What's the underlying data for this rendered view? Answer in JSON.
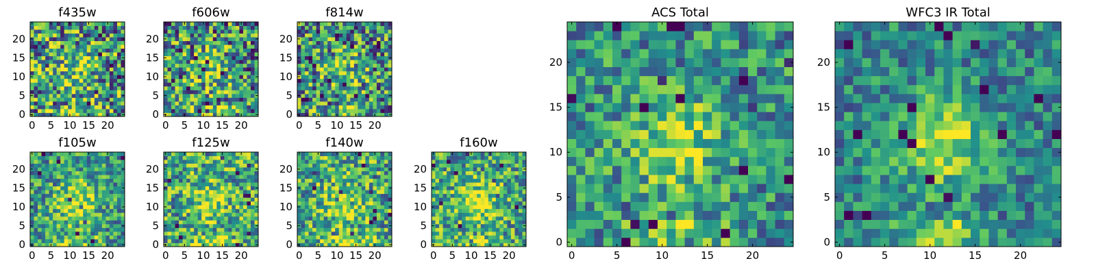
{
  "colormap": [
    "#440154",
    "#3b528b",
    "#21918c",
    "#5ec962",
    "#fde725"
  ],
  "chart_data": [
    {
      "id": "f435w",
      "type": "heatmap",
      "title": "f435w",
      "grid_size": 25,
      "xlim": [
        0,
        24
      ],
      "ylim": [
        0,
        24
      ],
      "xticks": [
        0,
        5,
        10,
        15,
        20
      ],
      "yticks": [
        0,
        5,
        10,
        15,
        20
      ],
      "seed": 435,
      "noise": 0.95,
      "blob": 0.25,
      "base": 0.55
    },
    {
      "id": "f606w",
      "type": "heatmap",
      "title": "f606w",
      "grid_size": 25,
      "xlim": [
        0,
        24
      ],
      "ylim": [
        0,
        24
      ],
      "xticks": [
        0,
        5,
        10,
        15,
        20
      ],
      "yticks": [
        0,
        5,
        10,
        15,
        20
      ],
      "seed": 606,
      "noise": 0.95,
      "blob": 0.25,
      "base": 0.5
    },
    {
      "id": "f814w",
      "type": "heatmap",
      "title": "f814w",
      "grid_size": 25,
      "xlim": [
        0,
        24
      ],
      "ylim": [
        0,
        24
      ],
      "xticks": [
        0,
        5,
        10,
        15,
        20
      ],
      "yticks": [
        0,
        5,
        10,
        15,
        20
      ],
      "seed": 814,
      "noise": 0.9,
      "blob": 0.3,
      "base": 0.5
    },
    {
      "id": "f105w",
      "type": "heatmap",
      "title": "f105w",
      "grid_size": 25,
      "xlim": [
        0,
        24
      ],
      "ylim": [
        0,
        24
      ],
      "xticks": [
        0,
        5,
        10,
        15,
        20
      ],
      "yticks": [
        0,
        5,
        10,
        15,
        20
      ],
      "seed": 105,
      "noise": 0.65,
      "blob": 0.4,
      "base": 0.55
    },
    {
      "id": "f125w",
      "type": "heatmap",
      "title": "f125w",
      "grid_size": 25,
      "xlim": [
        0,
        24
      ],
      "ylim": [
        0,
        24
      ],
      "xticks": [
        0,
        5,
        10,
        15,
        20
      ],
      "yticks": [
        0,
        5,
        10,
        15,
        20
      ],
      "seed": 125,
      "noise": 0.75,
      "blob": 0.25,
      "base": 0.6
    },
    {
      "id": "f140w",
      "type": "heatmap",
      "title": "f140w",
      "grid_size": 25,
      "xlim": [
        0,
        24
      ],
      "ylim": [
        0,
        24
      ],
      "xticks": [
        0,
        5,
        10,
        15,
        20
      ],
      "yticks": [
        0,
        5,
        10,
        15,
        20
      ],
      "seed": 140,
      "noise": 0.75,
      "blob": 0.3,
      "base": 0.6
    },
    {
      "id": "f160w",
      "type": "heatmap",
      "title": "f160w",
      "grid_size": 25,
      "xlim": [
        0,
        24
      ],
      "ylim": [
        0,
        24
      ],
      "xticks": [
        0,
        5,
        10,
        15,
        20
      ],
      "yticks": [
        0,
        5,
        10,
        15,
        20
      ],
      "seed": 160,
      "noise": 0.7,
      "blob": 0.35,
      "base": 0.6
    },
    {
      "id": "acs-total",
      "type": "heatmap",
      "title": "ACS Total",
      "grid_size": 25,
      "xlim": [
        0,
        24
      ],
      "ylim": [
        0,
        24
      ],
      "xticks": [
        0,
        5,
        10,
        15,
        20
      ],
      "yticks": [
        0,
        5,
        10,
        15,
        20
      ],
      "seed": 999,
      "noise": 0.6,
      "blob": 0.35,
      "base": 0.5
    },
    {
      "id": "wfc3-ir-total",
      "type": "heatmap",
      "title": "WFC3 IR Total",
      "grid_size": 25,
      "xlim": [
        0,
        24
      ],
      "ylim": [
        0,
        24
      ],
      "xticks": [
        0,
        5,
        10,
        15,
        20
      ],
      "yticks": [
        0,
        5,
        10,
        15,
        20
      ],
      "seed": 777,
      "noise": 0.5,
      "blob": 0.4,
      "base": 0.45
    }
  ]
}
